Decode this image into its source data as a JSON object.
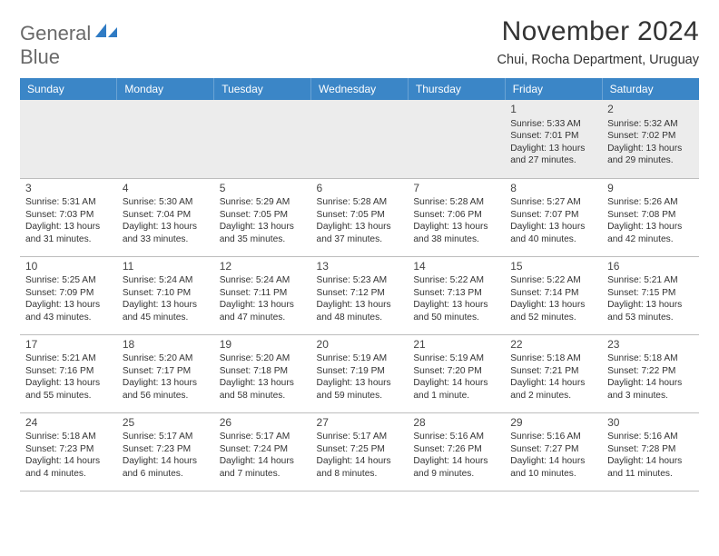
{
  "logo": {
    "line1": "General",
    "line2": "Blue",
    "text_color": "#6a6a6a",
    "accent_color": "#2f7bc4"
  },
  "title": "November 2024",
  "subtitle": "Chui, Rocha Department, Uruguay",
  "header_bg": "#3b86c7",
  "header_text_color": "#ffffff",
  "row_separator_color": "#4a6b90",
  "empty_cell_bg": "#ececec",
  "weekday_labels": [
    "Sunday",
    "Monday",
    "Tuesday",
    "Wednesday",
    "Thursday",
    "Friday",
    "Saturday"
  ],
  "weeks": [
    [
      null,
      null,
      null,
      null,
      null,
      {
        "n": "1",
        "sr": "5:33 AM",
        "ss": "7:01 PM",
        "dl": "13 hours and 27 minutes."
      },
      {
        "n": "2",
        "sr": "5:32 AM",
        "ss": "7:02 PM",
        "dl": "13 hours and 29 minutes."
      }
    ],
    [
      {
        "n": "3",
        "sr": "5:31 AM",
        "ss": "7:03 PM",
        "dl": "13 hours and 31 minutes."
      },
      {
        "n": "4",
        "sr": "5:30 AM",
        "ss": "7:04 PM",
        "dl": "13 hours and 33 minutes."
      },
      {
        "n": "5",
        "sr": "5:29 AM",
        "ss": "7:05 PM",
        "dl": "13 hours and 35 minutes."
      },
      {
        "n": "6",
        "sr": "5:28 AM",
        "ss": "7:05 PM",
        "dl": "13 hours and 37 minutes."
      },
      {
        "n": "7",
        "sr": "5:28 AM",
        "ss": "7:06 PM",
        "dl": "13 hours and 38 minutes."
      },
      {
        "n": "8",
        "sr": "5:27 AM",
        "ss": "7:07 PM",
        "dl": "13 hours and 40 minutes."
      },
      {
        "n": "9",
        "sr": "5:26 AM",
        "ss": "7:08 PM",
        "dl": "13 hours and 42 minutes."
      }
    ],
    [
      {
        "n": "10",
        "sr": "5:25 AM",
        "ss": "7:09 PM",
        "dl": "13 hours and 43 minutes."
      },
      {
        "n": "11",
        "sr": "5:24 AM",
        "ss": "7:10 PM",
        "dl": "13 hours and 45 minutes."
      },
      {
        "n": "12",
        "sr": "5:24 AM",
        "ss": "7:11 PM",
        "dl": "13 hours and 47 minutes."
      },
      {
        "n": "13",
        "sr": "5:23 AM",
        "ss": "7:12 PM",
        "dl": "13 hours and 48 minutes."
      },
      {
        "n": "14",
        "sr": "5:22 AM",
        "ss": "7:13 PM",
        "dl": "13 hours and 50 minutes."
      },
      {
        "n": "15",
        "sr": "5:22 AM",
        "ss": "7:14 PM",
        "dl": "13 hours and 52 minutes."
      },
      {
        "n": "16",
        "sr": "5:21 AM",
        "ss": "7:15 PM",
        "dl": "13 hours and 53 minutes."
      }
    ],
    [
      {
        "n": "17",
        "sr": "5:21 AM",
        "ss": "7:16 PM",
        "dl": "13 hours and 55 minutes."
      },
      {
        "n": "18",
        "sr": "5:20 AM",
        "ss": "7:17 PM",
        "dl": "13 hours and 56 minutes."
      },
      {
        "n": "19",
        "sr": "5:20 AM",
        "ss": "7:18 PM",
        "dl": "13 hours and 58 minutes."
      },
      {
        "n": "20",
        "sr": "5:19 AM",
        "ss": "7:19 PM",
        "dl": "13 hours and 59 minutes."
      },
      {
        "n": "21",
        "sr": "5:19 AM",
        "ss": "7:20 PM",
        "dl": "14 hours and 1 minute."
      },
      {
        "n": "22",
        "sr": "5:18 AM",
        "ss": "7:21 PM",
        "dl": "14 hours and 2 minutes."
      },
      {
        "n": "23",
        "sr": "5:18 AM",
        "ss": "7:22 PM",
        "dl": "14 hours and 3 minutes."
      }
    ],
    [
      {
        "n": "24",
        "sr": "5:18 AM",
        "ss": "7:23 PM",
        "dl": "14 hours and 4 minutes."
      },
      {
        "n": "25",
        "sr": "5:17 AM",
        "ss": "7:23 PM",
        "dl": "14 hours and 6 minutes."
      },
      {
        "n": "26",
        "sr": "5:17 AM",
        "ss": "7:24 PM",
        "dl": "14 hours and 7 minutes."
      },
      {
        "n": "27",
        "sr": "5:17 AM",
        "ss": "7:25 PM",
        "dl": "14 hours and 8 minutes."
      },
      {
        "n": "28",
        "sr": "5:16 AM",
        "ss": "7:26 PM",
        "dl": "14 hours and 9 minutes."
      },
      {
        "n": "29",
        "sr": "5:16 AM",
        "ss": "7:27 PM",
        "dl": "14 hours and 10 minutes."
      },
      {
        "n": "30",
        "sr": "5:16 AM",
        "ss": "7:28 PM",
        "dl": "14 hours and 11 minutes."
      }
    ]
  ],
  "labels": {
    "sunrise": "Sunrise:",
    "sunset": "Sunset:",
    "daylight": "Daylight:"
  }
}
